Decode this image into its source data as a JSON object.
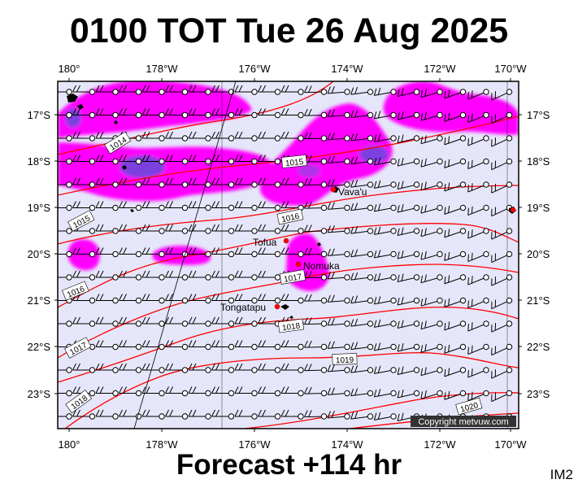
{
  "header": {
    "title": "0100 TOT Tue 26 Aug 2025"
  },
  "footer": {
    "forecast": "Forecast +114 hr",
    "model": "IM2",
    "copyright": "Copyright metvuw.com"
  },
  "colors": {
    "background": "#e6e6fa",
    "precip_light": "#ff00ff",
    "precip_heavy": "#7b3fe0",
    "isobar": "#ff0000",
    "wind": "#000000",
    "town": "#ff0000"
  },
  "axes": {
    "x_labels": [
      "180°",
      "178°W",
      "176°W",
      "174°W",
      "172°W",
      "170°W"
    ],
    "y_labels": [
      "17°S",
      "18°S",
      "19°S",
      "20°S",
      "21°S",
      "22°S",
      "23°S"
    ]
  },
  "isobars": [
    "1014",
    "1015",
    "1015",
    "1016",
    "1016",
    "1017",
    "1017",
    "1018",
    "1018",
    "1019",
    "1020"
  ],
  "places": [
    "Vava'u",
    "Tofua",
    "Nomuka",
    "Tongatapu"
  ]
}
